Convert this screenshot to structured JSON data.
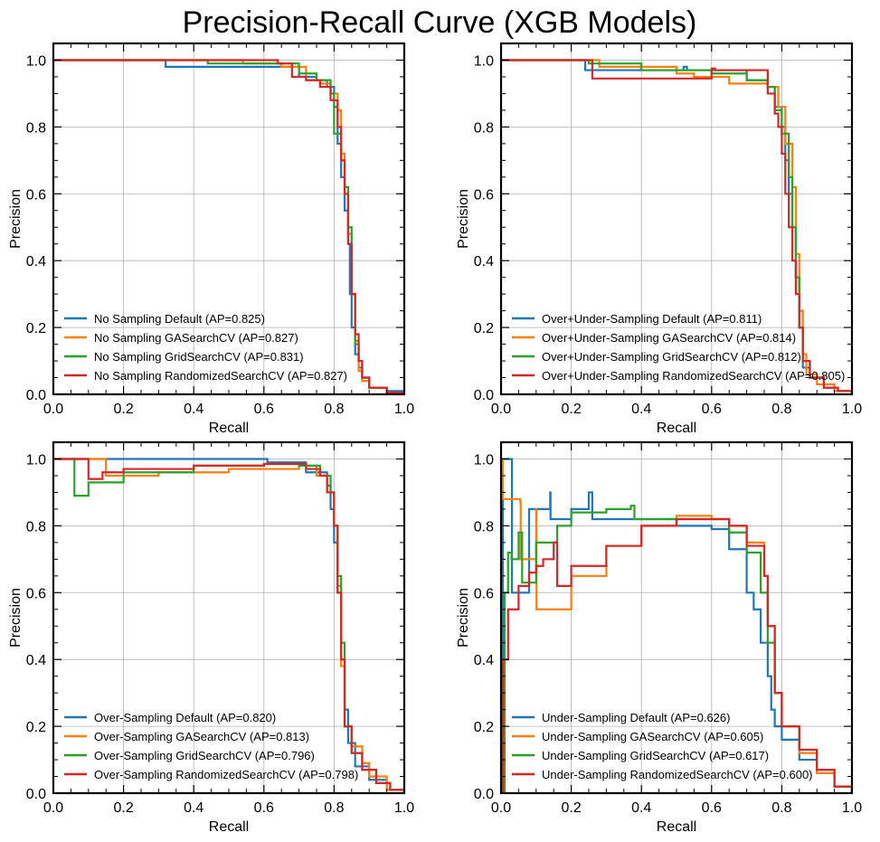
{
  "figure": {
    "title": "Precision-Recall Curve (XGB Models)"
  },
  "colors": {
    "default": "#1f77b4",
    "gasearch": "#ff7f0e",
    "gridsearch": "#2ca02c",
    "randomized": "#d62728",
    "grid": "#b0b0b0"
  },
  "chart_data": [
    {
      "type": "line",
      "xlabel": "Recall",
      "ylabel": "Precision",
      "xlim": [
        0,
        1
      ],
      "ylim": [
        0,
        1.05
      ],
      "xticks": [
        "0.0",
        "0.2",
        "0.4",
        "0.6",
        "0.8",
        "1.0"
      ],
      "yticks": [
        "0.0",
        "0.2",
        "0.4",
        "0.6",
        "0.8",
        "1.0"
      ],
      "grid": true,
      "legend_position": "lower-left",
      "series": [
        {
          "name": "No Sampling Default (AP=0.825)",
          "x": [
            0,
            0.31,
            0.32,
            0.55,
            0.7,
            0.75,
            0.78,
            0.8,
            0.81,
            0.82,
            0.83,
            0.84,
            0.845,
            0.85,
            0.86,
            0.87,
            0.88,
            0.9,
            0.95,
            1.0
          ],
          "y": [
            1.0,
            1.0,
            0.98,
            0.98,
            0.95,
            0.94,
            0.92,
            0.86,
            0.75,
            0.65,
            0.55,
            0.45,
            0.3,
            0.2,
            0.12,
            0.08,
            0.05,
            0.02,
            0.01,
            0.0
          ]
        },
        {
          "name": "No Sampling GASearchCV (AP=0.827)",
          "x": [
            0,
            0.53,
            0.54,
            0.65,
            0.72,
            0.76,
            0.79,
            0.81,
            0.82,
            0.83,
            0.84,
            0.85,
            0.86,
            0.87,
            0.88,
            0.9,
            0.95,
            1.0
          ],
          "y": [
            1.0,
            1.0,
            0.99,
            0.98,
            0.94,
            0.93,
            0.9,
            0.85,
            0.72,
            0.6,
            0.48,
            0.3,
            0.16,
            0.07,
            0.04,
            0.02,
            0.005,
            0.0
          ]
        },
        {
          "name": "No Sampling GridSearchCV (AP=0.831)",
          "x": [
            0,
            0.43,
            0.44,
            0.6,
            0.7,
            0.75,
            0.79,
            0.8,
            0.82,
            0.83,
            0.84,
            0.85,
            0.86,
            0.87,
            0.88,
            0.9,
            0.95,
            1.0
          ],
          "y": [
            1.0,
            1.0,
            0.99,
            0.99,
            0.96,
            0.94,
            0.9,
            0.78,
            0.7,
            0.62,
            0.5,
            0.3,
            0.15,
            0.1,
            0.05,
            0.02,
            0.005,
            0.0
          ]
        },
        {
          "name": "No Sampling RandomizedSearchCV (AP=0.827)",
          "x": [
            0,
            0.63,
            0.64,
            0.68,
            0.72,
            0.76,
            0.79,
            0.81,
            0.82,
            0.83,
            0.84,
            0.85,
            0.86,
            0.87,
            0.88,
            0.9,
            0.95,
            1.0
          ],
          "y": [
            1.0,
            1.0,
            0.99,
            0.95,
            0.94,
            0.92,
            0.88,
            0.8,
            0.7,
            0.6,
            0.45,
            0.3,
            0.18,
            0.1,
            0.05,
            0.02,
            0.005,
            0.0
          ]
        }
      ]
    },
    {
      "type": "line",
      "xlabel": "Recall",
      "ylabel": "Precision",
      "xlim": [
        0,
        1
      ],
      "ylim": [
        0,
        1.05
      ],
      "xticks": [
        "0.0",
        "0.2",
        "0.4",
        "0.6",
        "0.8",
        "1.0"
      ],
      "yticks": [
        "0.0",
        "0.2",
        "0.4",
        "0.6",
        "0.8",
        "1.0"
      ],
      "grid": true,
      "legend_position": "lower-left",
      "series": [
        {
          "name": "Over+Under-Sampling Default (AP=0.811)",
          "x": [
            0,
            0.23,
            0.24,
            0.52,
            0.53,
            0.7,
            0.76,
            0.78,
            0.8,
            0.81,
            0.82,
            0.83,
            0.84,
            0.85,
            0.86,
            0.88,
            0.92,
            0.96,
            1.0
          ],
          "y": [
            1.0,
            1.0,
            0.97,
            0.98,
            0.97,
            0.94,
            0.92,
            0.86,
            0.8,
            0.7,
            0.6,
            0.5,
            0.35,
            0.2,
            0.08,
            0.05,
            0.02,
            0.01,
            0.0
          ]
        },
        {
          "name": "Over+Under-Sampling GASearchCV (AP=0.814)",
          "x": [
            0,
            0.27,
            0.28,
            0.5,
            0.55,
            0.65,
            0.72,
            0.76,
            0.79,
            0.81,
            0.83,
            0.84,
            0.85,
            0.86,
            0.87,
            0.9,
            0.95,
            1.0
          ],
          "y": [
            1.0,
            1.0,
            0.98,
            0.96,
            0.95,
            0.93,
            0.93,
            0.92,
            0.86,
            0.75,
            0.62,
            0.42,
            0.25,
            0.12,
            0.06,
            0.03,
            0.01,
            0.0
          ]
        },
        {
          "name": "Over+Under-Sampling GridSearchCV (AP=0.812)",
          "x": [
            0,
            0.24,
            0.25,
            0.4,
            0.6,
            0.7,
            0.76,
            0.78,
            0.8,
            0.82,
            0.83,
            0.84,
            0.85,
            0.86,
            0.88,
            0.92,
            0.96,
            1.0
          ],
          "y": [
            1.0,
            1.0,
            0.99,
            0.97,
            0.96,
            0.94,
            0.92,
            0.85,
            0.78,
            0.65,
            0.5,
            0.35,
            0.2,
            0.1,
            0.05,
            0.02,
            0.01,
            0.0
          ]
        },
        {
          "name": "Over+Under-Sampling RandomizedSearchCV (AP=0.805)",
          "x": [
            0,
            0.25,
            0.26,
            0.6,
            0.61,
            0.76,
            0.78,
            0.79,
            0.8,
            0.81,
            0.82,
            0.83,
            0.84,
            0.85,
            0.86,
            0.88,
            0.92,
            0.96,
            1.0
          ],
          "y": [
            1.0,
            1.0,
            0.945,
            0.975,
            0.97,
            0.9,
            0.84,
            0.8,
            0.72,
            0.6,
            0.5,
            0.4,
            0.3,
            0.2,
            0.1,
            0.05,
            0.02,
            0.01,
            0.0
          ]
        }
      ]
    },
    {
      "type": "line",
      "xlabel": "Recall",
      "ylabel": "Precision",
      "xlim": [
        0,
        1
      ],
      "ylim": [
        0,
        1.05
      ],
      "xticks": [
        "0.0",
        "0.2",
        "0.4",
        "0.6",
        "0.8",
        "1.0"
      ],
      "yticks": [
        "0.0",
        "0.2",
        "0.4",
        "0.6",
        "0.8",
        "1.0"
      ],
      "grid": true,
      "legend_position": "lower-left",
      "series": [
        {
          "name": "Over-Sampling Default (AP=0.820)",
          "x": [
            0,
            0.6,
            0.61,
            0.72,
            0.78,
            0.79,
            0.8,
            0.81,
            0.82,
            0.83,
            0.84,
            0.86,
            0.9,
            0.95,
            1.0
          ],
          "y": [
            1.0,
            1.0,
            0.99,
            0.96,
            0.92,
            0.85,
            0.75,
            0.6,
            0.4,
            0.25,
            0.15,
            0.08,
            0.04,
            0.01,
            0.0
          ]
        },
        {
          "name": "Over-Sampling GASearchCV (AP=0.813)",
          "x": [
            0,
            0.14,
            0.15,
            0.3,
            0.5,
            0.7,
            0.75,
            0.78,
            0.8,
            0.81,
            0.82,
            0.83,
            0.85,
            0.88,
            0.9,
            0.95,
            1.0
          ],
          "y": [
            1.0,
            1.0,
            0.95,
            0.96,
            0.97,
            0.98,
            0.95,
            0.9,
            0.8,
            0.62,
            0.38,
            0.2,
            0.14,
            0.09,
            0.05,
            0.01,
            0.0
          ]
        },
        {
          "name": "Over-Sampling GridSearchCV (AP=0.796)",
          "x": [
            0,
            0.05,
            0.06,
            0.1,
            0.2,
            0.4,
            0.6,
            0.7,
            0.76,
            0.79,
            0.8,
            0.81,
            0.82,
            0.83,
            0.85,
            0.88,
            0.92,
            0.96,
            1.0
          ],
          "y": [
            1.0,
            1.0,
            0.89,
            0.93,
            0.96,
            0.98,
            0.985,
            0.98,
            0.95,
            0.9,
            0.8,
            0.65,
            0.45,
            0.2,
            0.12,
            0.07,
            0.03,
            0.01,
            0.0
          ]
        },
        {
          "name": "Over-Sampling RandomizedSearchCV (AP=0.798)",
          "x": [
            0,
            0.09,
            0.1,
            0.14,
            0.2,
            0.4,
            0.6,
            0.72,
            0.76,
            0.78,
            0.8,
            0.81,
            0.82,
            0.83,
            0.85,
            0.88,
            0.92,
            0.96,
            1.0
          ],
          "y": [
            1.0,
            1.0,
            0.94,
            0.96,
            0.97,
            0.98,
            0.985,
            0.97,
            0.95,
            0.9,
            0.8,
            0.6,
            0.4,
            0.2,
            0.12,
            0.07,
            0.03,
            0.01,
            0.0
          ]
        }
      ]
    },
    {
      "type": "line",
      "xlabel": "Recall",
      "ylabel": "Precision",
      "xlim": [
        0,
        1
      ],
      "ylim": [
        0,
        1.05
      ],
      "xticks": [
        "0.0",
        "0.2",
        "0.4",
        "0.6",
        "0.8",
        "1.0"
      ],
      "yticks": [
        "0.0",
        "0.2",
        "0.4",
        "0.6",
        "0.8",
        "1.0"
      ],
      "grid": true,
      "legend_position": "lower-left",
      "series": [
        {
          "name": "Under-Sampling Default (AP=0.626)",
          "x": [
            0,
            0.005,
            0.03,
            0.031,
            0.08,
            0.14,
            0.141,
            0.2,
            0.25,
            0.26,
            0.3,
            0.4,
            0.5,
            0.6,
            0.65,
            0.7,
            0.72,
            0.74,
            0.76,
            0.77,
            0.78,
            0.8,
            0.85,
            0.9,
            0.95,
            1.0
          ],
          "y": [
            0.0,
            1.0,
            1.0,
            0.6,
            0.85,
            0.9,
            0.82,
            0.85,
            0.9,
            0.82,
            0.82,
            0.82,
            0.8,
            0.79,
            0.73,
            0.6,
            0.55,
            0.45,
            0.35,
            0.25,
            0.2,
            0.16,
            0.1,
            0.06,
            0.02,
            0.0
          ]
        },
        {
          "name": "Under-Sampling GASearchCV (AP=0.605)",
          "x": [
            0,
            0.005,
            0.055,
            0.056,
            0.1,
            0.101,
            0.2,
            0.3,
            0.4,
            0.5,
            0.6,
            0.65,
            0.7,
            0.75,
            0.76,
            0.78,
            0.8,
            0.85,
            0.9,
            0.95,
            1.0
          ],
          "y": [
            1.0,
            0.88,
            0.87,
            0.7,
            0.85,
            0.55,
            0.65,
            0.74,
            0.8,
            0.83,
            0.82,
            0.8,
            0.75,
            0.65,
            0.5,
            0.3,
            0.2,
            0.12,
            0.06,
            0.02,
            0.0
          ]
        },
        {
          "name": "Under-Sampling GridSearchCV (AP=0.617)",
          "x": [
            0,
            0.01,
            0.02,
            0.03,
            0.05,
            0.06,
            0.1,
            0.16,
            0.2,
            0.3,
            0.37,
            0.38,
            0.5,
            0.6,
            0.65,
            0.7,
            0.74,
            0.76,
            0.78,
            0.8,
            0.85,
            0.9,
            0.95,
            1.0
          ],
          "y": [
            0.0,
            0.6,
            0.72,
            0.7,
            0.78,
            0.63,
            0.75,
            0.8,
            0.84,
            0.85,
            0.86,
            0.82,
            0.82,
            0.82,
            0.78,
            0.72,
            0.6,
            0.45,
            0.3,
            0.2,
            0.13,
            0.07,
            0.02,
            0.0
          ]
        },
        {
          "name": "Under-Sampling RandomizedSearchCV (AP=0.600)",
          "x": [
            0,
            0.005,
            0.02,
            0.05,
            0.08,
            0.1,
            0.12,
            0.15,
            0.16,
            0.2,
            0.3,
            0.4,
            0.5,
            0.6,
            0.65,
            0.7,
            0.75,
            0.76,
            0.78,
            0.8,
            0.85,
            0.9,
            0.95,
            1.0
          ],
          "y": [
            0.0,
            0.4,
            0.55,
            0.62,
            0.66,
            0.68,
            0.7,
            0.75,
            0.62,
            0.68,
            0.74,
            0.8,
            0.82,
            0.82,
            0.8,
            0.74,
            0.65,
            0.5,
            0.3,
            0.2,
            0.13,
            0.07,
            0.02,
            0.0
          ]
        }
      ]
    }
  ]
}
